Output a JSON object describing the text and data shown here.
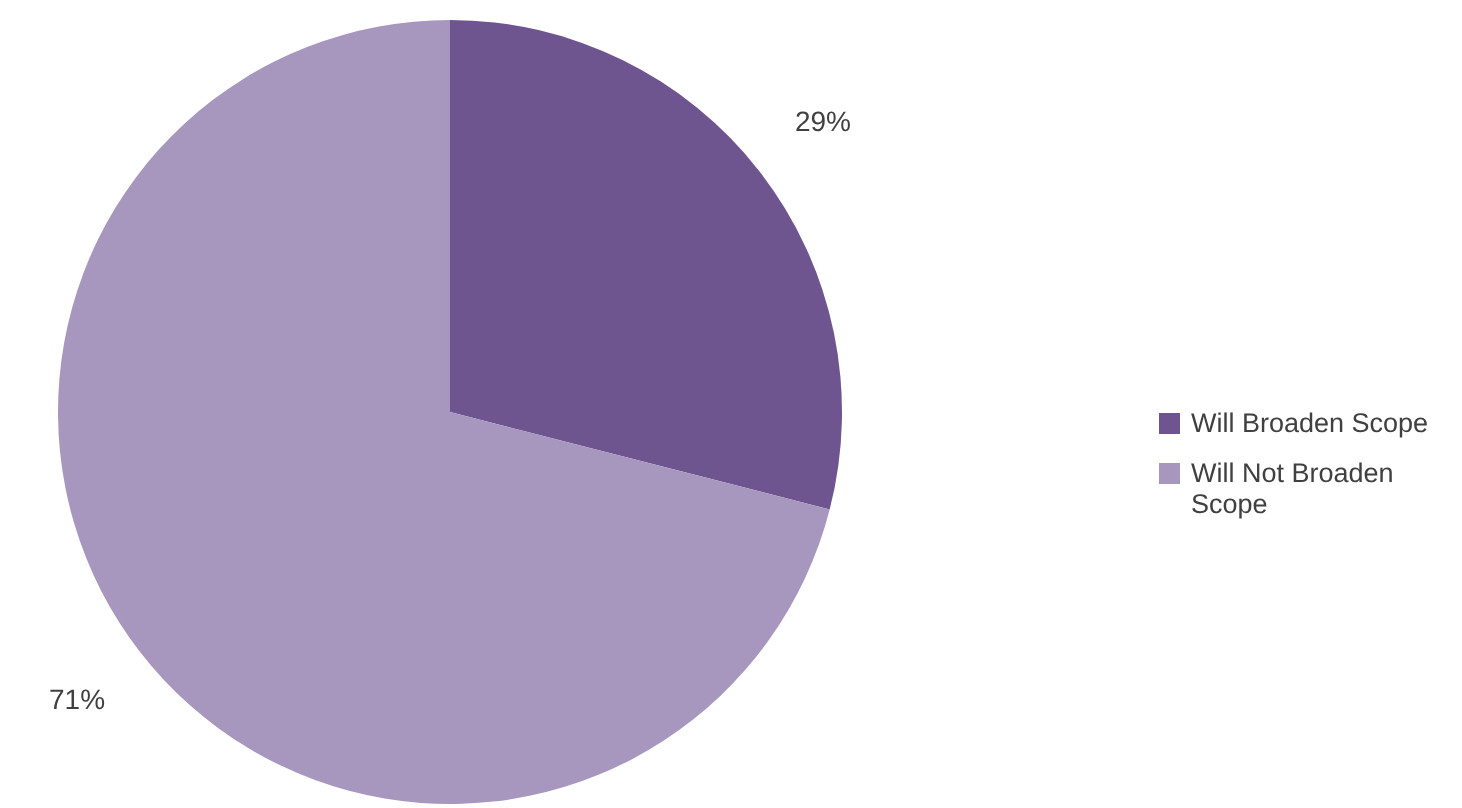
{
  "chart_data": {
    "type": "pie",
    "categories": [
      "Will Broaden Scope",
      "Will Not Broaden Scope"
    ],
    "values": [
      29,
      71
    ],
    "colors": [
      "#6e5590",
      "#a797bf"
    ],
    "value_labels": [
      "29%",
      "71%"
    ],
    "legend": "right"
  }
}
